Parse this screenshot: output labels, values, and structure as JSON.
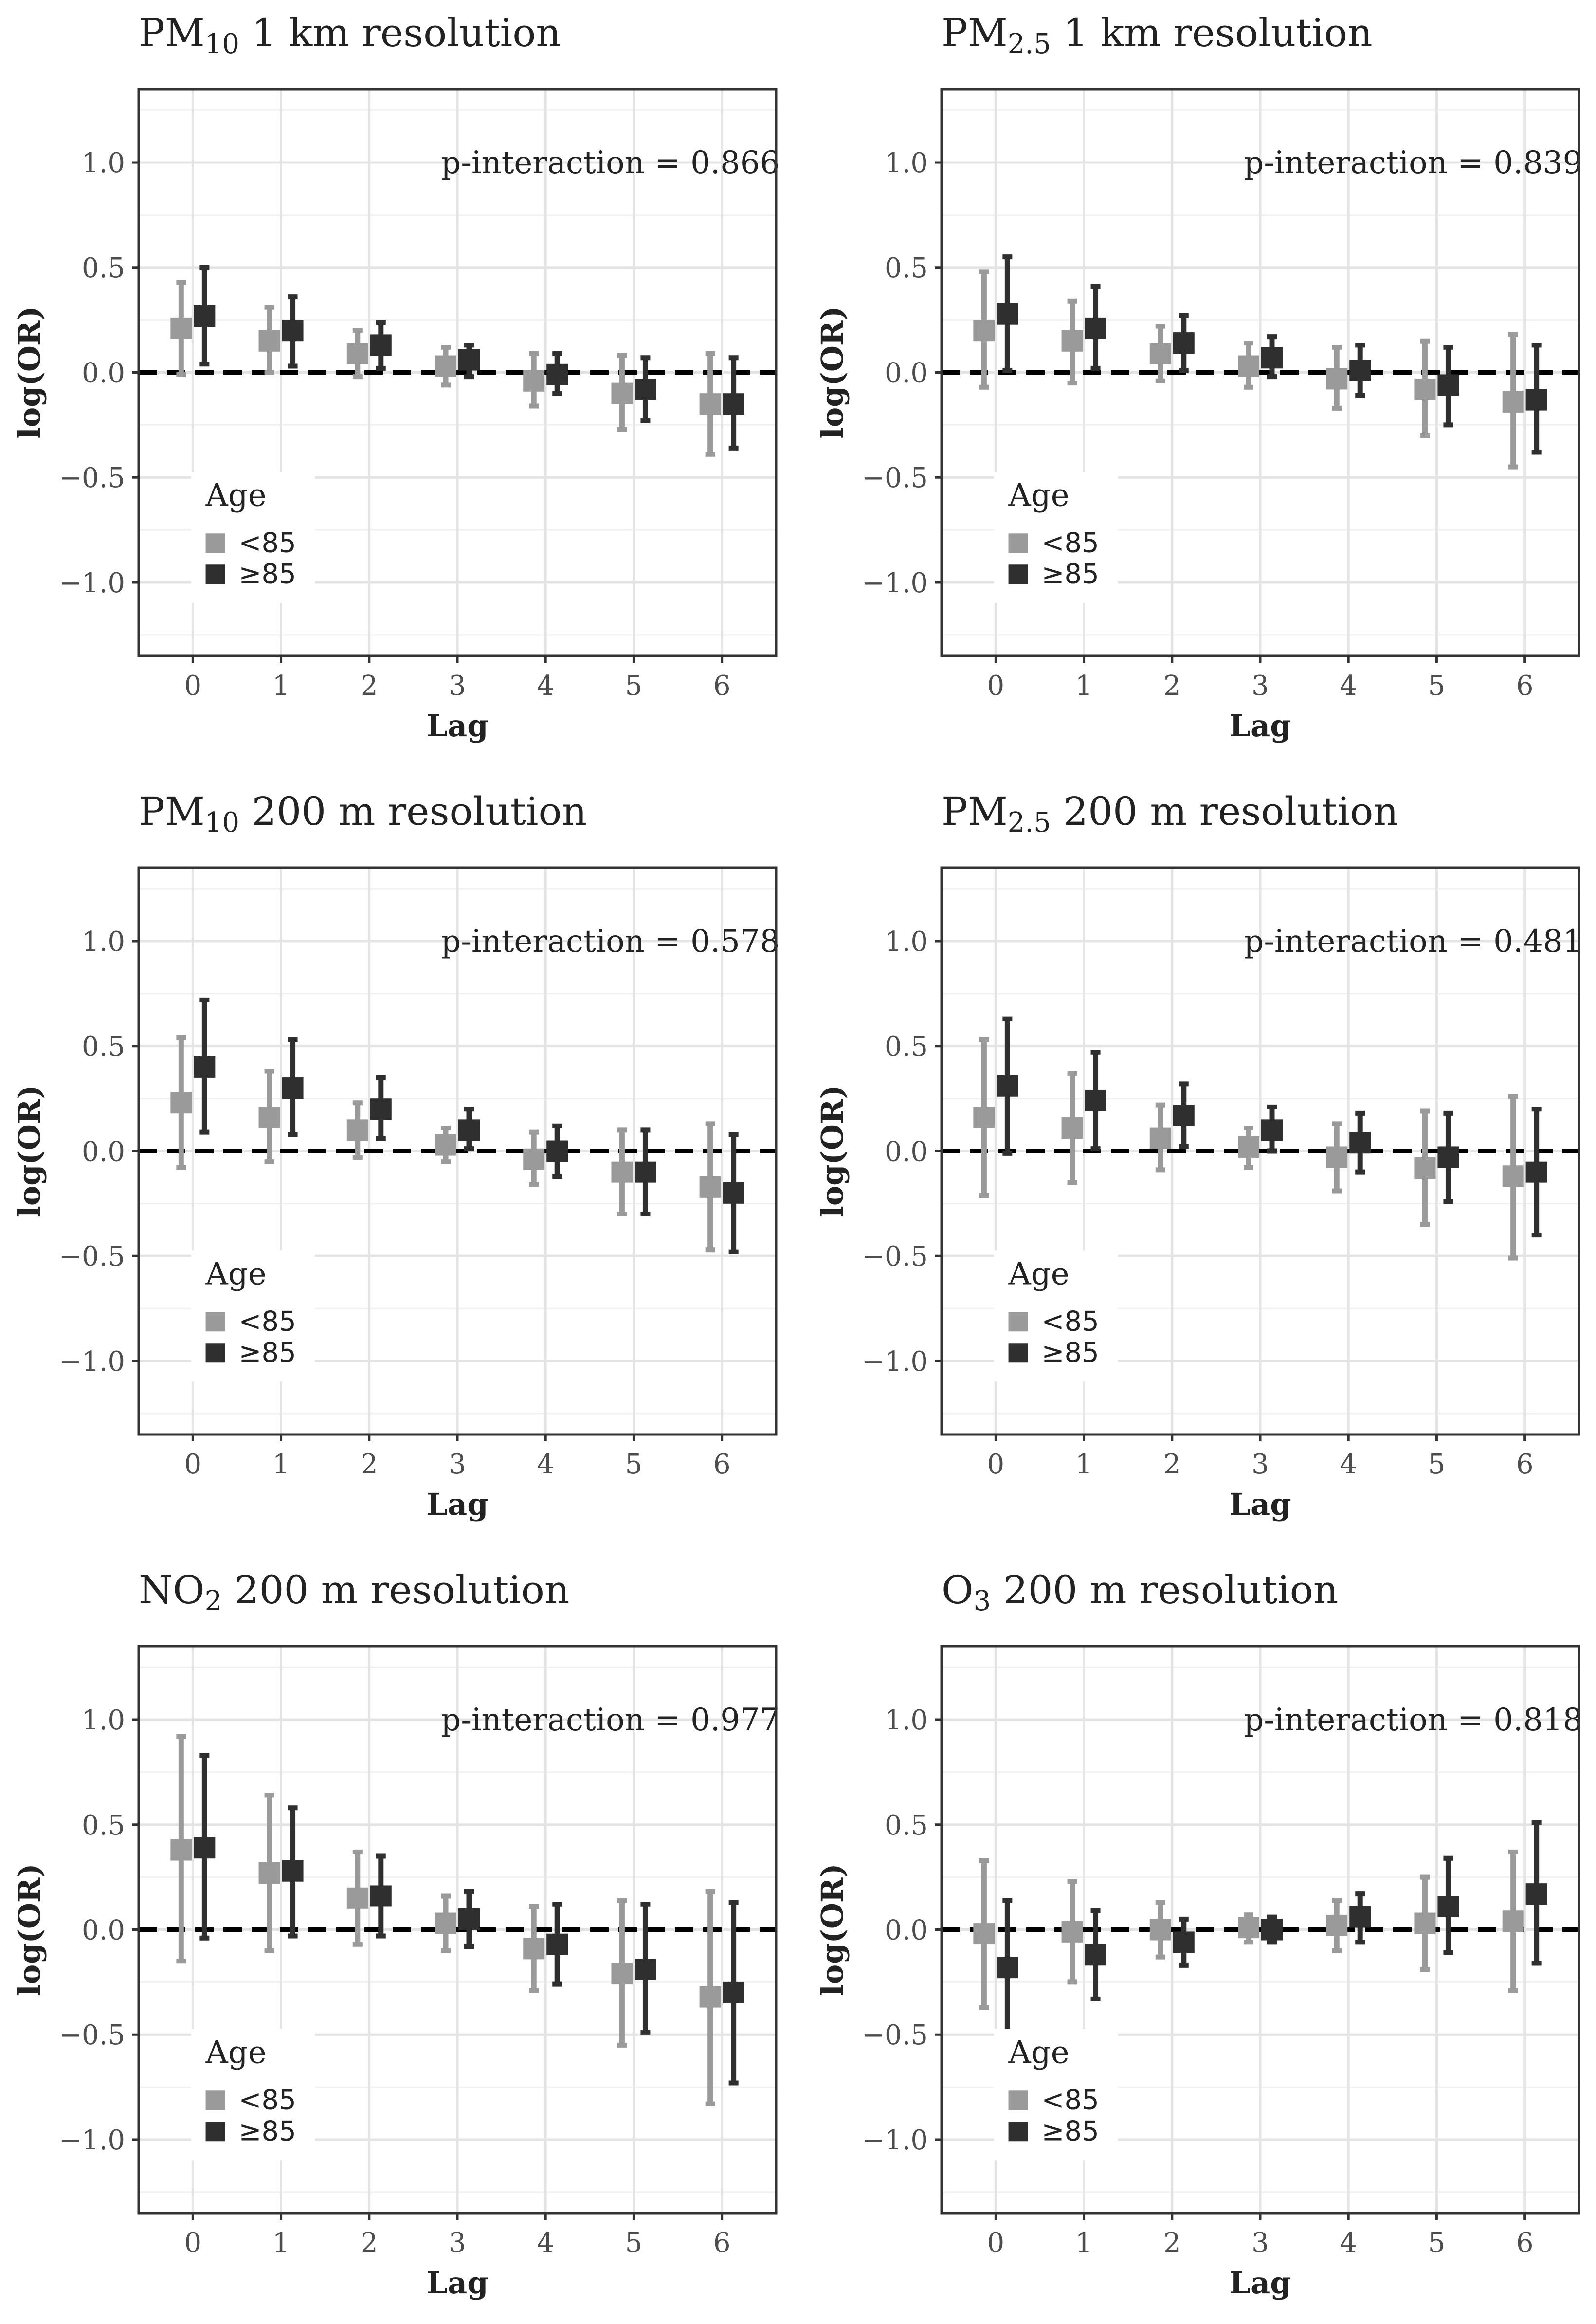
{
  "colors": {
    "under85": "#9a9a9a",
    "over85": "#2f2f2f",
    "grid_major": "#e4e4e4",
    "grid_minor": "#f1f1f1",
    "panel_border": "#333333",
    "zero_line": "#000000"
  },
  "chart_data": [
    {
      "type": "errorbar",
      "title_main": "PM",
      "title_sub": "10",
      "title_rest": " 1 km resolution",
      "annotation": "p-interaction = 0.866",
      "xlabel": "Lag",
      "ylabel": "log(OR)",
      "categories": [
        "0",
        "1",
        "2",
        "3",
        "4",
        "5",
        "6"
      ],
      "yticks": [
        "1.0",
        "0.5",
        "0.0",
        "−0.5",
        "−1.0"
      ],
      "ylim": [
        -1.35,
        1.35
      ],
      "legend_title": "Age",
      "series": [
        {
          "name": "<85",
          "estimates": [
            0.21,
            0.15,
            0.09,
            0.03,
            -0.04,
            -0.1,
            -0.15
          ],
          "lower": [
            -0.01,
            0.0,
            -0.02,
            -0.06,
            -0.16,
            -0.27,
            -0.39
          ],
          "upper": [
            0.43,
            0.31,
            0.2,
            0.12,
            0.09,
            0.08,
            0.09
          ]
        },
        {
          "name": "≥85",
          "estimates": [
            0.27,
            0.2,
            0.13,
            0.06,
            -0.01,
            -0.08,
            -0.15
          ],
          "lower": [
            0.04,
            0.03,
            0.02,
            -0.02,
            -0.1,
            -0.23,
            -0.36
          ],
          "upper": [
            0.5,
            0.36,
            0.24,
            0.13,
            0.09,
            0.07,
            0.07
          ]
        }
      ]
    },
    {
      "type": "errorbar",
      "title_main": "PM",
      "title_sub": "2.5",
      "title_rest": " 1 km resolution",
      "annotation": "p-interaction = 0.839",
      "xlabel": "Lag",
      "ylabel": "log(OR)",
      "categories": [
        "0",
        "1",
        "2",
        "3",
        "4",
        "5",
        "6"
      ],
      "yticks": [
        "1.0",
        "0.5",
        "0.0",
        "−0.5",
        "−1.0"
      ],
      "ylim": [
        -1.35,
        1.35
      ],
      "legend_title": "Age",
      "series": [
        {
          "name": "<85",
          "estimates": [
            0.2,
            0.15,
            0.09,
            0.03,
            -0.03,
            -0.08,
            -0.14
          ],
          "lower": [
            -0.07,
            -0.05,
            -0.04,
            -0.07,
            -0.17,
            -0.3,
            -0.45
          ],
          "upper": [
            0.48,
            0.34,
            0.22,
            0.14,
            0.12,
            0.15,
            0.18
          ]
        },
        {
          "name": "≥85",
          "estimates": [
            0.28,
            0.21,
            0.14,
            0.07,
            0.01,
            -0.06,
            -0.13
          ],
          "lower": [
            0.01,
            0.02,
            0.01,
            -0.02,
            -0.11,
            -0.25,
            -0.38
          ],
          "upper": [
            0.55,
            0.41,
            0.27,
            0.17,
            0.13,
            0.12,
            0.13
          ]
        }
      ]
    },
    {
      "type": "errorbar",
      "title_main": "PM",
      "title_sub": "10",
      "title_rest": " 200 m resolution",
      "annotation": "p-interaction = 0.578",
      "xlabel": "Lag",
      "ylabel": "log(OR)",
      "categories": [
        "0",
        "1",
        "2",
        "3",
        "4",
        "5",
        "6"
      ],
      "yticks": [
        "1.0",
        "0.5",
        "0.0",
        "−0.5",
        "−1.0"
      ],
      "ylim": [
        -1.35,
        1.35
      ],
      "legend_title": "Age",
      "series": [
        {
          "name": "<85",
          "estimates": [
            0.23,
            0.16,
            0.1,
            0.03,
            -0.04,
            -0.1,
            -0.17
          ],
          "lower": [
            -0.08,
            -0.05,
            -0.03,
            -0.05,
            -0.16,
            -0.3,
            -0.47
          ],
          "upper": [
            0.54,
            0.38,
            0.23,
            0.11,
            0.09,
            0.1,
            0.13
          ]
        },
        {
          "name": "≥85",
          "estimates": [
            0.4,
            0.3,
            0.2,
            0.1,
            0.0,
            -0.1,
            -0.2
          ],
          "lower": [
            0.09,
            0.08,
            0.06,
            0.01,
            -0.12,
            -0.3,
            -0.48
          ],
          "upper": [
            0.72,
            0.53,
            0.35,
            0.2,
            0.12,
            0.1,
            0.08
          ]
        }
      ]
    },
    {
      "type": "errorbar",
      "title_main": "PM",
      "title_sub": "2.5",
      "title_rest": " 200 m resolution",
      "annotation": "p-interaction = 0.481",
      "xlabel": "Lag",
      "ylabel": "log(OR)",
      "categories": [
        "0",
        "1",
        "2",
        "3",
        "4",
        "5",
        "6"
      ],
      "yticks": [
        "1.0",
        "0.5",
        "0.0",
        "−0.5",
        "−1.0"
      ],
      "ylim": [
        -1.35,
        1.35
      ],
      "legend_title": "Age",
      "series": [
        {
          "name": "<85",
          "estimates": [
            0.16,
            0.11,
            0.06,
            0.02,
            -0.03,
            -0.08,
            -0.12
          ],
          "lower": [
            -0.21,
            -0.15,
            -0.09,
            -0.08,
            -0.19,
            -0.35,
            -0.51
          ],
          "upper": [
            0.53,
            0.37,
            0.22,
            0.11,
            0.13,
            0.19,
            0.26
          ]
        },
        {
          "name": "≥85",
          "estimates": [
            0.31,
            0.24,
            0.17,
            0.1,
            0.04,
            -0.03,
            -0.1
          ],
          "lower": [
            -0.01,
            0.01,
            0.02,
            0.0,
            -0.1,
            -0.24,
            -0.4
          ],
          "upper": [
            0.63,
            0.47,
            0.32,
            0.21,
            0.18,
            0.18,
            0.2
          ]
        }
      ]
    },
    {
      "type": "errorbar",
      "title_main": "NO",
      "title_sub": "2",
      "title_rest": " 200 m resolution",
      "annotation": "p-interaction = 0.977",
      "xlabel": "Lag",
      "ylabel": "log(OR)",
      "categories": [
        "0",
        "1",
        "2",
        "3",
        "4",
        "5",
        "6"
      ],
      "yticks": [
        "1.0",
        "0.5",
        "0.0",
        "−0.5",
        "−1.0"
      ],
      "ylim": [
        -1.35,
        1.35
      ],
      "legend_title": "Age",
      "series": [
        {
          "name": "<85",
          "estimates": [
            0.38,
            0.27,
            0.15,
            0.03,
            -0.09,
            -0.21,
            -0.32
          ],
          "lower": [
            -0.15,
            -0.1,
            -0.07,
            -0.1,
            -0.29,
            -0.55,
            -0.83
          ],
          "upper": [
            0.92,
            0.64,
            0.37,
            0.16,
            0.11,
            0.14,
            0.18
          ]
        },
        {
          "name": "≥85",
          "estimates": [
            0.39,
            0.28,
            0.16,
            0.05,
            -0.07,
            -0.19,
            -0.3
          ],
          "lower": [
            -0.04,
            -0.03,
            -0.03,
            -0.08,
            -0.26,
            -0.49,
            -0.73
          ],
          "upper": [
            0.83,
            0.58,
            0.35,
            0.18,
            0.12,
            0.12,
            0.13
          ]
        }
      ]
    },
    {
      "type": "errorbar",
      "title_main": "O",
      "title_sub": "3",
      "title_rest": " 200 m resolution",
      "annotation": "p-interaction = 0.818",
      "xlabel": "Lag",
      "ylabel": "log(OR)",
      "categories": [
        "0",
        "1",
        "2",
        "3",
        "4",
        "5",
        "6"
      ],
      "yticks": [
        "1.0",
        "0.5",
        "0.0",
        "−0.5",
        "−1.0"
      ],
      "ylim": [
        -1.35,
        1.35
      ],
      "legend_title": "Age",
      "series": [
        {
          "name": "<85",
          "estimates": [
            -0.02,
            -0.01,
            0.0,
            0.01,
            0.02,
            0.03,
            0.04
          ],
          "lower": [
            -0.37,
            -0.25,
            -0.13,
            -0.06,
            -0.1,
            -0.19,
            -0.29
          ],
          "upper": [
            0.33,
            0.23,
            0.13,
            0.07,
            0.14,
            0.25,
            0.37
          ]
        },
        {
          "name": "≥85",
          "estimates": [
            -0.18,
            -0.12,
            -0.06,
            0.0,
            0.06,
            0.11,
            0.17
          ],
          "lower": [
            -0.5,
            -0.33,
            -0.17,
            -0.06,
            -0.06,
            -0.11,
            -0.16
          ],
          "upper": [
            0.14,
            0.09,
            0.05,
            0.06,
            0.17,
            0.34,
            0.51
          ]
        }
      ]
    }
  ]
}
